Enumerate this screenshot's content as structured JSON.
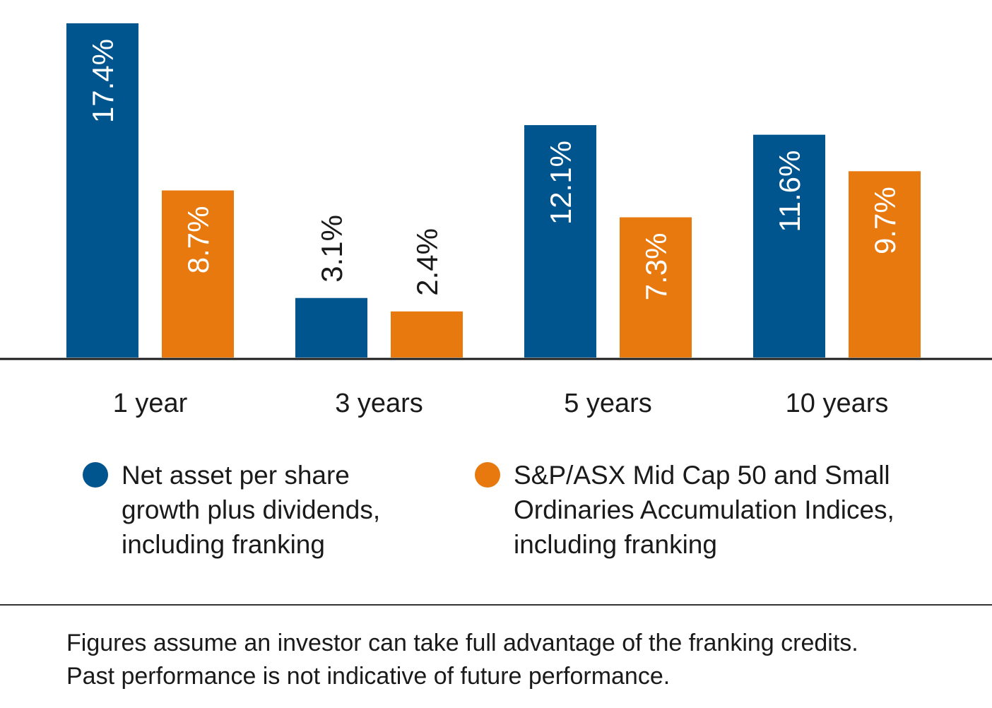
{
  "chart_data": {
    "type": "bar",
    "categories": [
      "1 year",
      "3 years",
      "5 years",
      "10 years"
    ],
    "series": [
      {
        "name": "Net asset per share growth plus dividends, including franking",
        "values": [
          17.4,
          3.1,
          12.1,
          11.6
        ],
        "labels": [
          "17.4%",
          "3.1%",
          "12.1%",
          "11.6%"
        ],
        "color": "#00558f"
      },
      {
        "name": "S&P/ASX Mid Cap 50 and Small Ordinaries Accumulation Indices, including franking",
        "values": [
          8.7,
          2.4,
          7.3,
          9.7
        ],
        "labels": [
          "8.7%",
          "2.4%",
          "7.3%",
          "9.7%"
        ],
        "color": "#e8790f"
      }
    ],
    "ylim": [
      0,
      17.4
    ],
    "grid": false,
    "legend_position": "bottom"
  },
  "legend": {
    "left_lines": [
      "Net asset per share",
      "growth plus dividends,",
      "including franking"
    ],
    "right_lines": [
      "S&P/ASX Mid Cap 50 and Small",
      "Ordinaries Accumulation Indices,",
      "including franking"
    ]
  },
  "footnote": {
    "line1": "Figures assume an investor can take full advantage of the franking credits.",
    "line2": "Past performance is not indicative of future performance."
  }
}
